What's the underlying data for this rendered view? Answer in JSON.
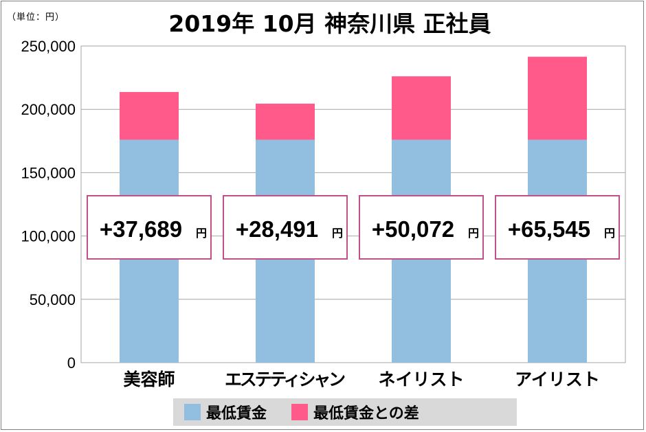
{
  "unit_label": "（単位：円）",
  "title": "2019年 10月  神奈川県  正社員",
  "colors": {
    "base": "#92bedf",
    "diff": "#ff5a8a",
    "box_border": "#c0508a",
    "grid": "#a6a6a6"
  },
  "legend": [
    {
      "label": "最低賃金",
      "color": "#92bedf"
    },
    {
      "label": "最低賃金との差",
      "color": "#ff5a8a"
    }
  ],
  "chart_data": {
    "type": "bar",
    "stacked": true,
    "categories": [
      "美容師",
      "エステティシャン",
      "ネイリスト",
      "アイリスト"
    ],
    "series": [
      {
        "name": "最低賃金",
        "values": [
          176000,
          176000,
          176000,
          176000
        ]
      },
      {
        "name": "最低賃金との差",
        "values": [
          37689,
          28491,
          50072,
          65545
        ]
      }
    ],
    "ylim": [
      0,
      250000
    ],
    "yticks": [
      "0",
      "50,000",
      "100,000",
      "150,000",
      "200,000",
      "250,000"
    ],
    "ytick_values": [
      0,
      50000,
      100000,
      150000,
      200000,
      250000
    ],
    "annotations": [
      {
        "value": "+37,689",
        "unit": "円"
      },
      {
        "value": "+28,491",
        "unit": "円"
      },
      {
        "value": "+50,072",
        "unit": "円"
      },
      {
        "value": "+65,545",
        "unit": "円"
      }
    ],
    "grid": true
  }
}
